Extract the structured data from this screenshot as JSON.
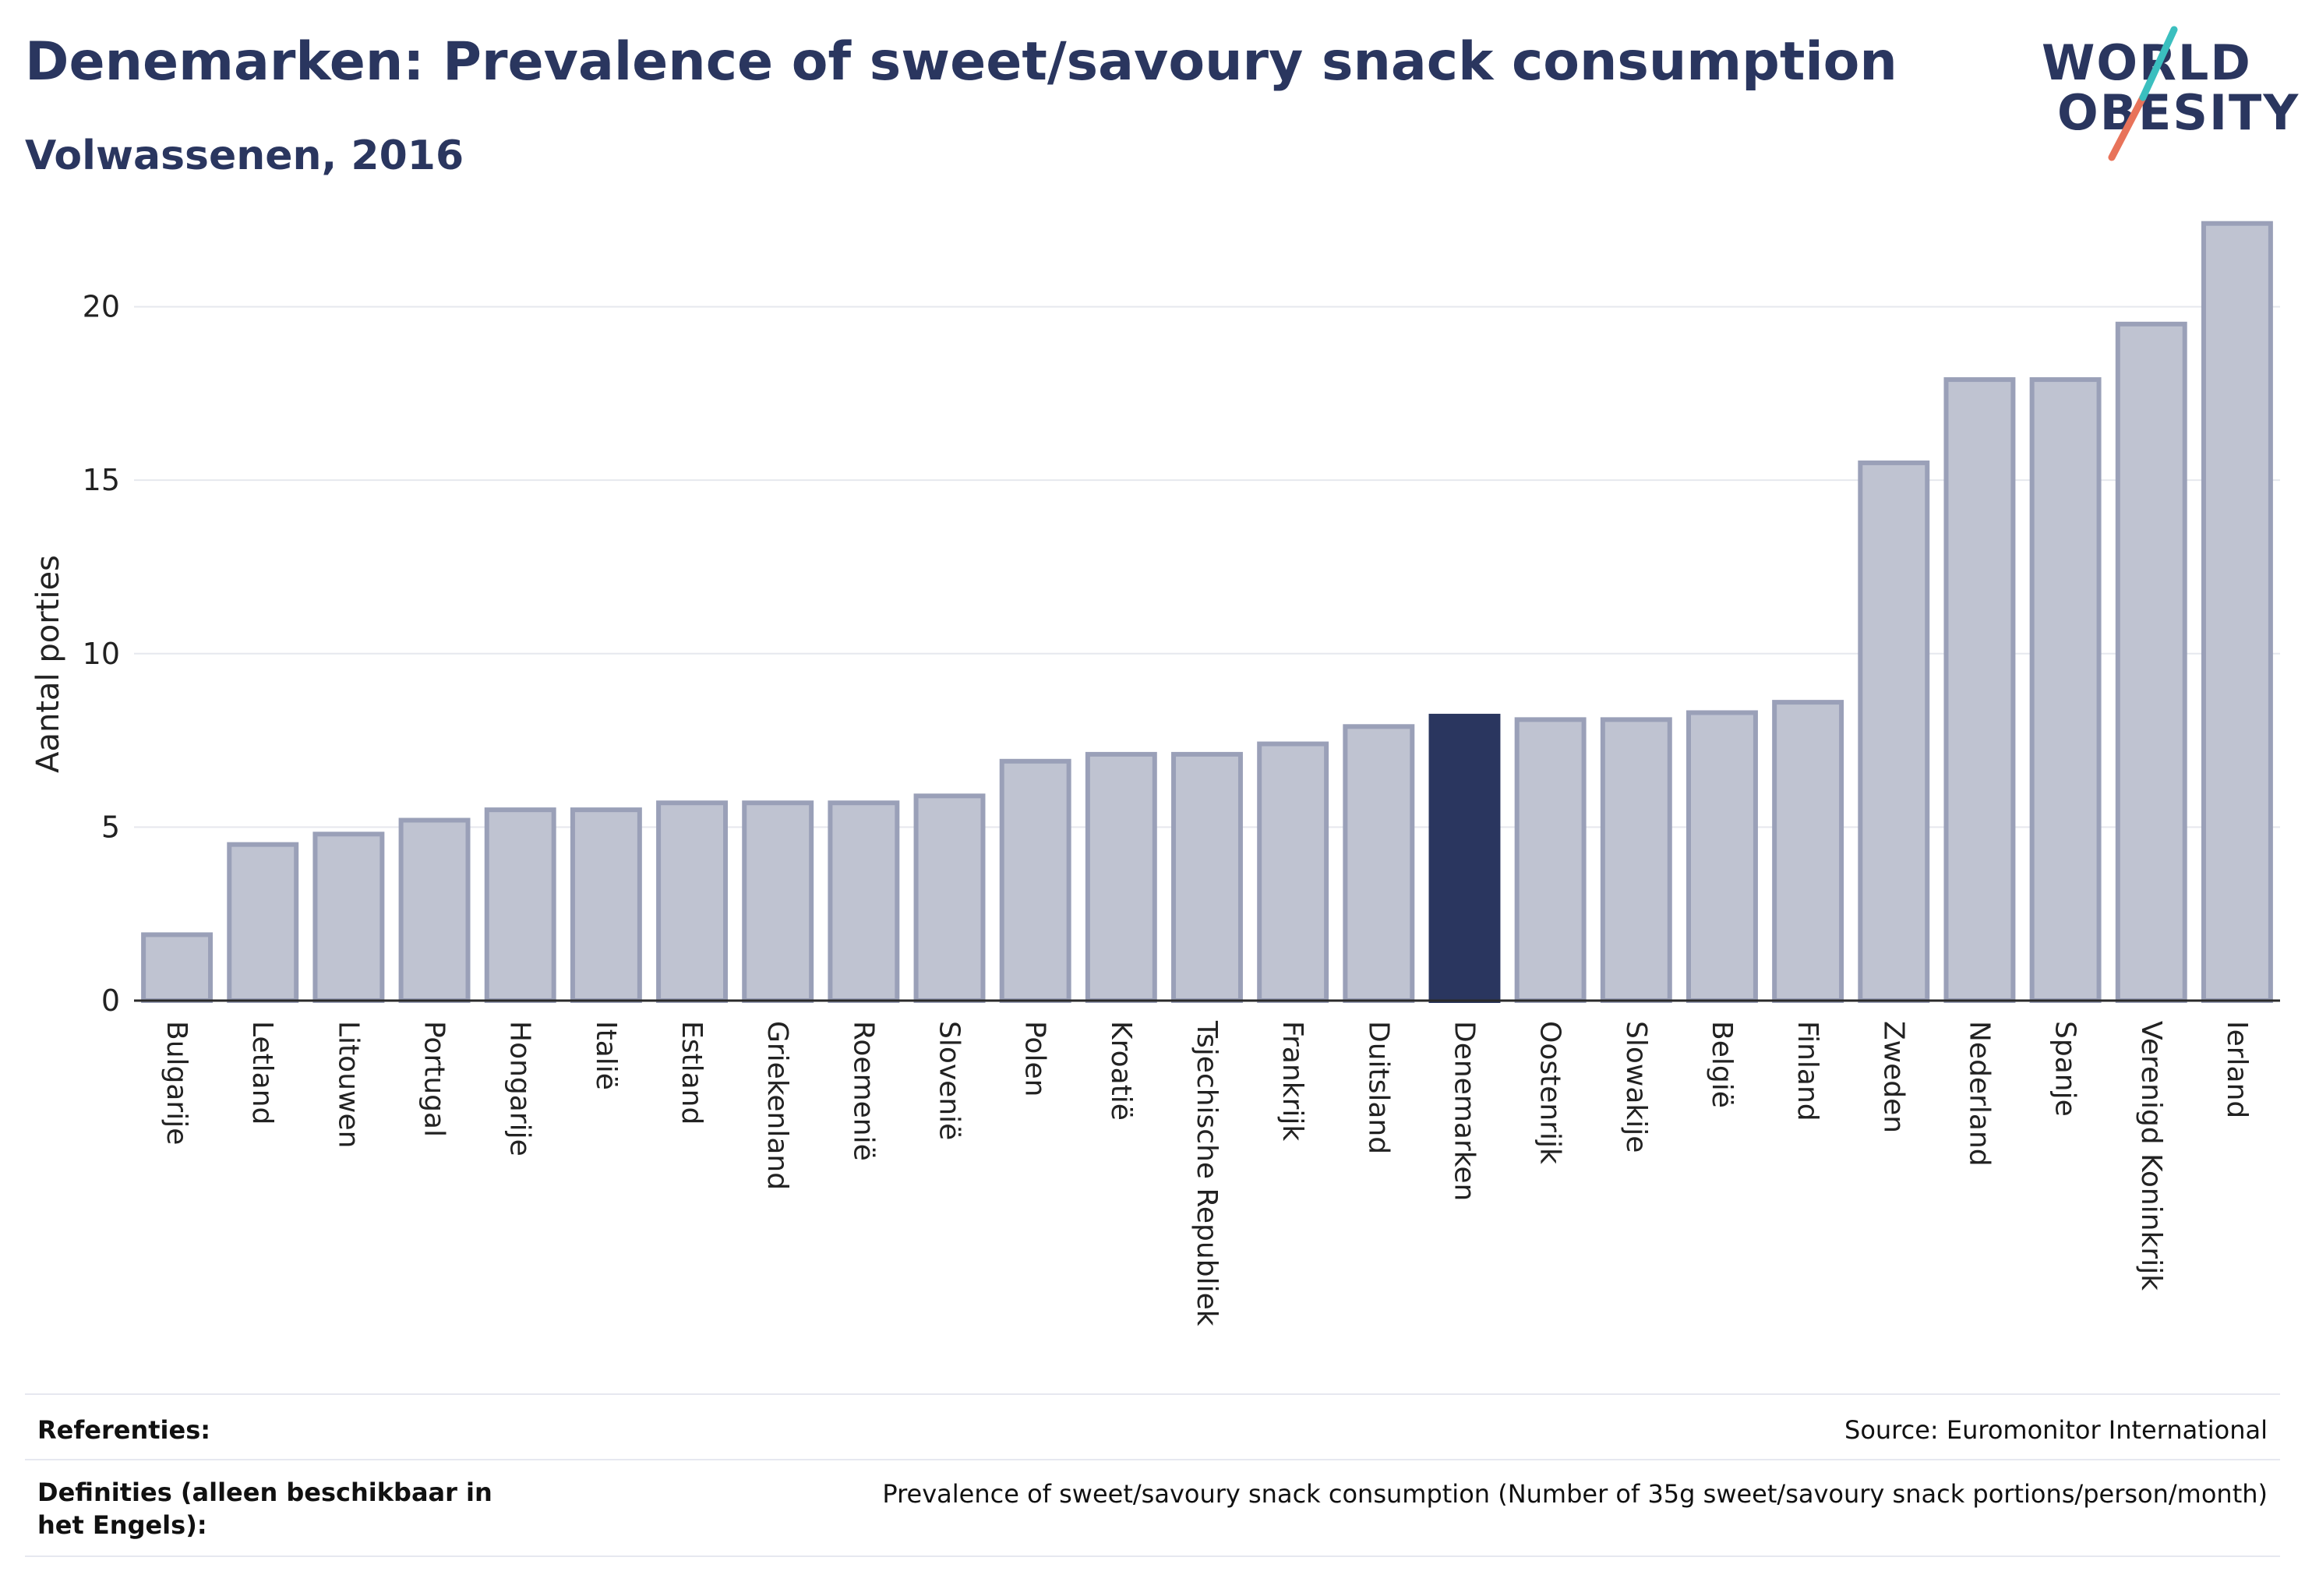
{
  "header": {
    "title": "Denemarken: Prevalence of sweet/savoury snack consumption",
    "subtitle": "Volwassenen, 2016"
  },
  "logo": {
    "line1": "WORLD",
    "line2": "OBESITY",
    "brand_color": "#2a365f",
    "accent_teal": "#3bbfbf",
    "accent_coral": "#e8735a"
  },
  "colors": {
    "bar_default": "#bfc3d1",
    "bar_border": "#9aa0b8",
    "bar_highlight": "#2a365f",
    "grid": "#e6e8ee",
    "axis": "#2a2a2a"
  },
  "chart_data": {
    "type": "bar",
    "title": "Denemarken: Prevalence of sweet/savoury snack consumption",
    "subtitle": "Volwassenen, 2016",
    "ylabel": "Aantal porties",
    "xlabel": "",
    "ylim": [
      0,
      23
    ],
    "yticks": [
      0,
      5,
      10,
      15,
      20
    ],
    "grid": true,
    "highlight": "Denemarken",
    "categories": [
      "Bulgarije",
      "Letland",
      "Litouwen",
      "Portugal",
      "Hongarije",
      "Italië",
      "Estland",
      "Griekenland",
      "Roemenië",
      "Slovenië",
      "Polen",
      "Kroatië",
      "Tsjechische Republiek",
      "Frankrijk",
      "Duitsland",
      "Denemarken",
      "Oostenrijk",
      "Slowakije",
      "België",
      "Finland",
      "Zweden",
      "Nederland",
      "Spanje",
      "Verenigd Koninkrijk",
      "Ierland"
    ],
    "values": [
      1.9,
      4.5,
      4.8,
      5.2,
      5.5,
      5.5,
      5.7,
      5.7,
      5.7,
      5.9,
      6.9,
      7.1,
      7.1,
      7.4,
      7.9,
      8.2,
      8.1,
      8.1,
      8.3,
      8.6,
      15.5,
      17.9,
      17.9,
      19.5,
      22.4
    ]
  },
  "footer": {
    "references_label": "Referenties:",
    "references_value": "Source: Euromonitor International",
    "definitions_label": "Definities (alleen beschikbaar in het Engels):",
    "definitions_value": "Prevalence of sweet/savoury snack consumption (Number of 35g sweet/savoury snack portions/person/month)"
  }
}
